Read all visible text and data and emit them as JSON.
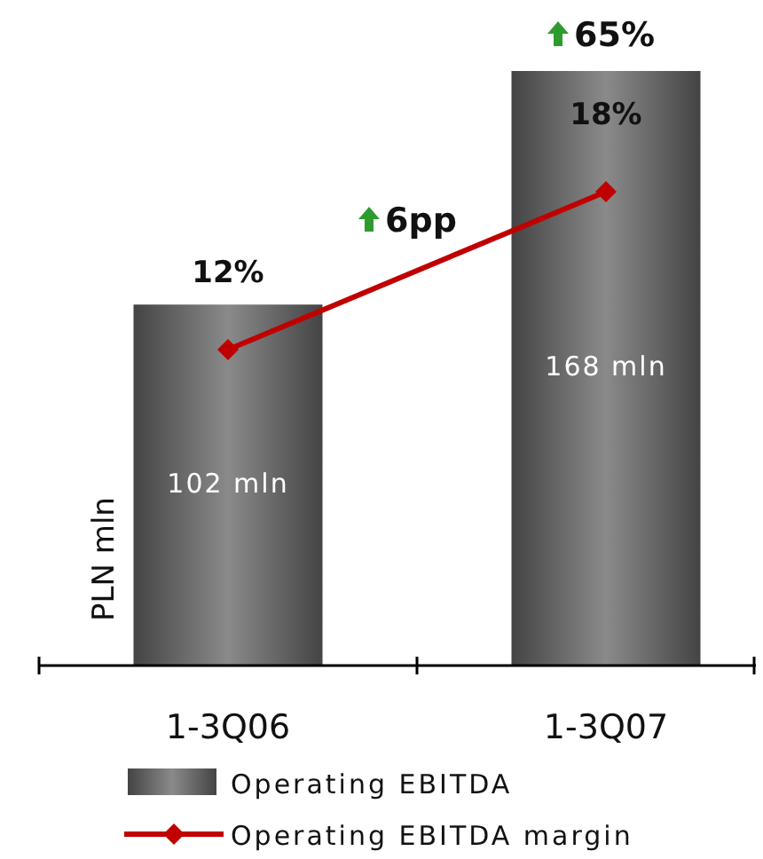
{
  "chart_data": {
    "type": "bar",
    "categories": [
      "1-3Q06",
      "1-3Q07"
    ],
    "ylabel": "PLN mln",
    "tick_labels": "x",
    "legend": "bottom",
    "grid": false,
    "series": [
      {
        "name": "Operating EBITDA",
        "color": "#5a5a5a",
        "values": [
          102,
          168
        ],
        "value_labels": [
          "102 mln",
          "168 mln"
        ]
      },
      {
        "name": "Operating EBITDA margin",
        "type": "line",
        "axis": "y2",
        "color": "#c00000",
        "marker": "diamond",
        "line_style": "solid",
        "values": [
          12,
          18
        ],
        "value_labels": [
          "12%",
          "18%"
        ]
      }
    ],
    "annotations": [
      "65%",
      "6pp"
    ]
  }
}
